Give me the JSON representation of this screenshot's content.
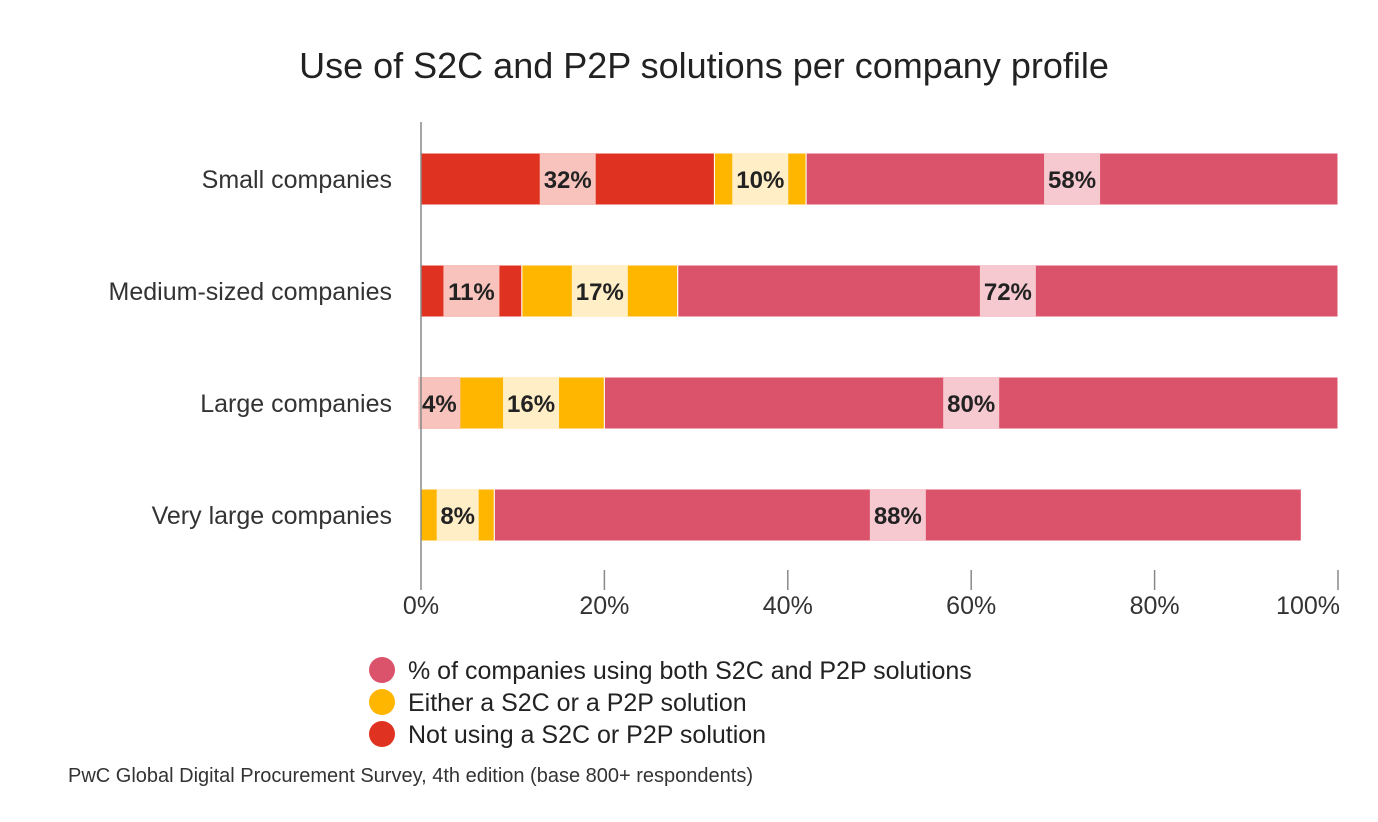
{
  "chart_data": {
    "type": "bar",
    "orientation": "horizontal",
    "stacked": true,
    "title": "Use of S2C and P2P solutions per company profile",
    "categories": [
      "Small companies",
      "Medium-sized companies",
      "Large companies",
      "Very large companies"
    ],
    "series": [
      {
        "name": "Not using a S2C or P2P solution",
        "color": "#e03220",
        "values": [
          32,
          11,
          4,
          0
        ]
      },
      {
        "name": "Either a S2C or a P2P solution",
        "color": "#ffb600",
        "values": [
          10,
          17,
          16,
          8
        ]
      },
      {
        "name": "% of companies using both S2C and P2P solutions",
        "color": "#db536a",
        "values": [
          58,
          72,
          80,
          88
        ]
      }
    ],
    "data_labels": [
      [
        "32%",
        "10%",
        "58%"
      ],
      [
        "11%",
        "17%",
        "72%"
      ],
      [
        "4%",
        "16%",
        "80%"
      ],
      [
        "",
        "8%",
        "88%"
      ]
    ],
    "x_ticks": [
      0,
      20,
      40,
      60,
      80,
      100
    ],
    "x_tick_labels": [
      "0%",
      "20%",
      "40%",
      "60%",
      "80%",
      "100%"
    ],
    "xlim": [
      0,
      100
    ],
    "legend": {
      "position": "bottom",
      "entries": [
        {
          "label": "% of companies using both S2C and P2P solutions",
          "color": "#db536a"
        },
        {
          "label": "Either a S2C or a P2P solution",
          "color": "#ffb600"
        },
        {
          "label": "Not using a S2C or P2P solution",
          "color": "#e03220"
        }
      ]
    },
    "source": "PwC Global Digital Procurement Survey, 4th edition (base 800+ respondents)",
    "label_box_colors": [
      "#f9c3bd",
      "#ffeec6",
      "#f6c9d1"
    ]
  }
}
